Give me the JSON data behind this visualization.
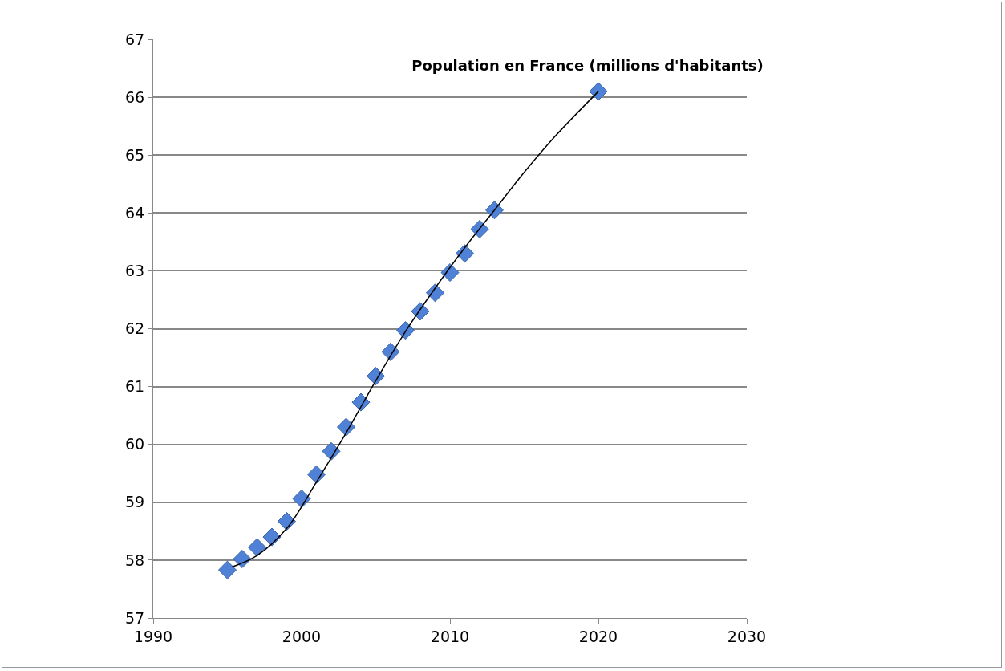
{
  "chart_data": {
    "type": "scatter",
    "title": "Population en France (millions d'habitants)",
    "marker": "diamond",
    "grid": "y",
    "xlim": [
      1990,
      2030
    ],
    "xticks": [
      1990,
      2000,
      2010,
      2020,
      2030
    ],
    "ylim": [
      57,
      67
    ],
    "yticks": [
      57,
      58,
      59,
      60,
      61,
      62,
      63,
      64,
      65,
      66,
      67
    ],
    "series": [
      {
        "color": "#4f81d6",
        "x": [
          1995,
          1996,
          1997,
          1998,
          1999,
          2000,
          2001,
          2002,
          2003,
          2004,
          2005,
          2006,
          2007,
          2008,
          2009,
          2010,
          2011,
          2012,
          2013,
          2020
        ],
        "values": [
          57.83,
          58.02,
          58.22,
          58.4,
          58.67,
          59.06,
          59.48,
          59.88,
          60.3,
          60.73,
          61.18,
          61.6,
          61.97,
          62.3,
          62.62,
          62.97,
          63.3,
          63.72,
          64.05,
          66.1
        ]
      },
      {
        "type": "line",
        "color": "#000000",
        "marker": "none",
        "line_style": "solid",
        "x": [
          1995.3,
          1997,
          1999,
          2001,
          2003,
          2005,
          2007,
          2009,
          2011,
          2013,
          2015,
          2017,
          2020
        ],
        "values": [
          57.88,
          58.08,
          58.55,
          59.35,
          60.2,
          61.1,
          61.95,
          62.7,
          63.4,
          64.05,
          64.7,
          65.3,
          66.1
        ]
      }
    ]
  }
}
